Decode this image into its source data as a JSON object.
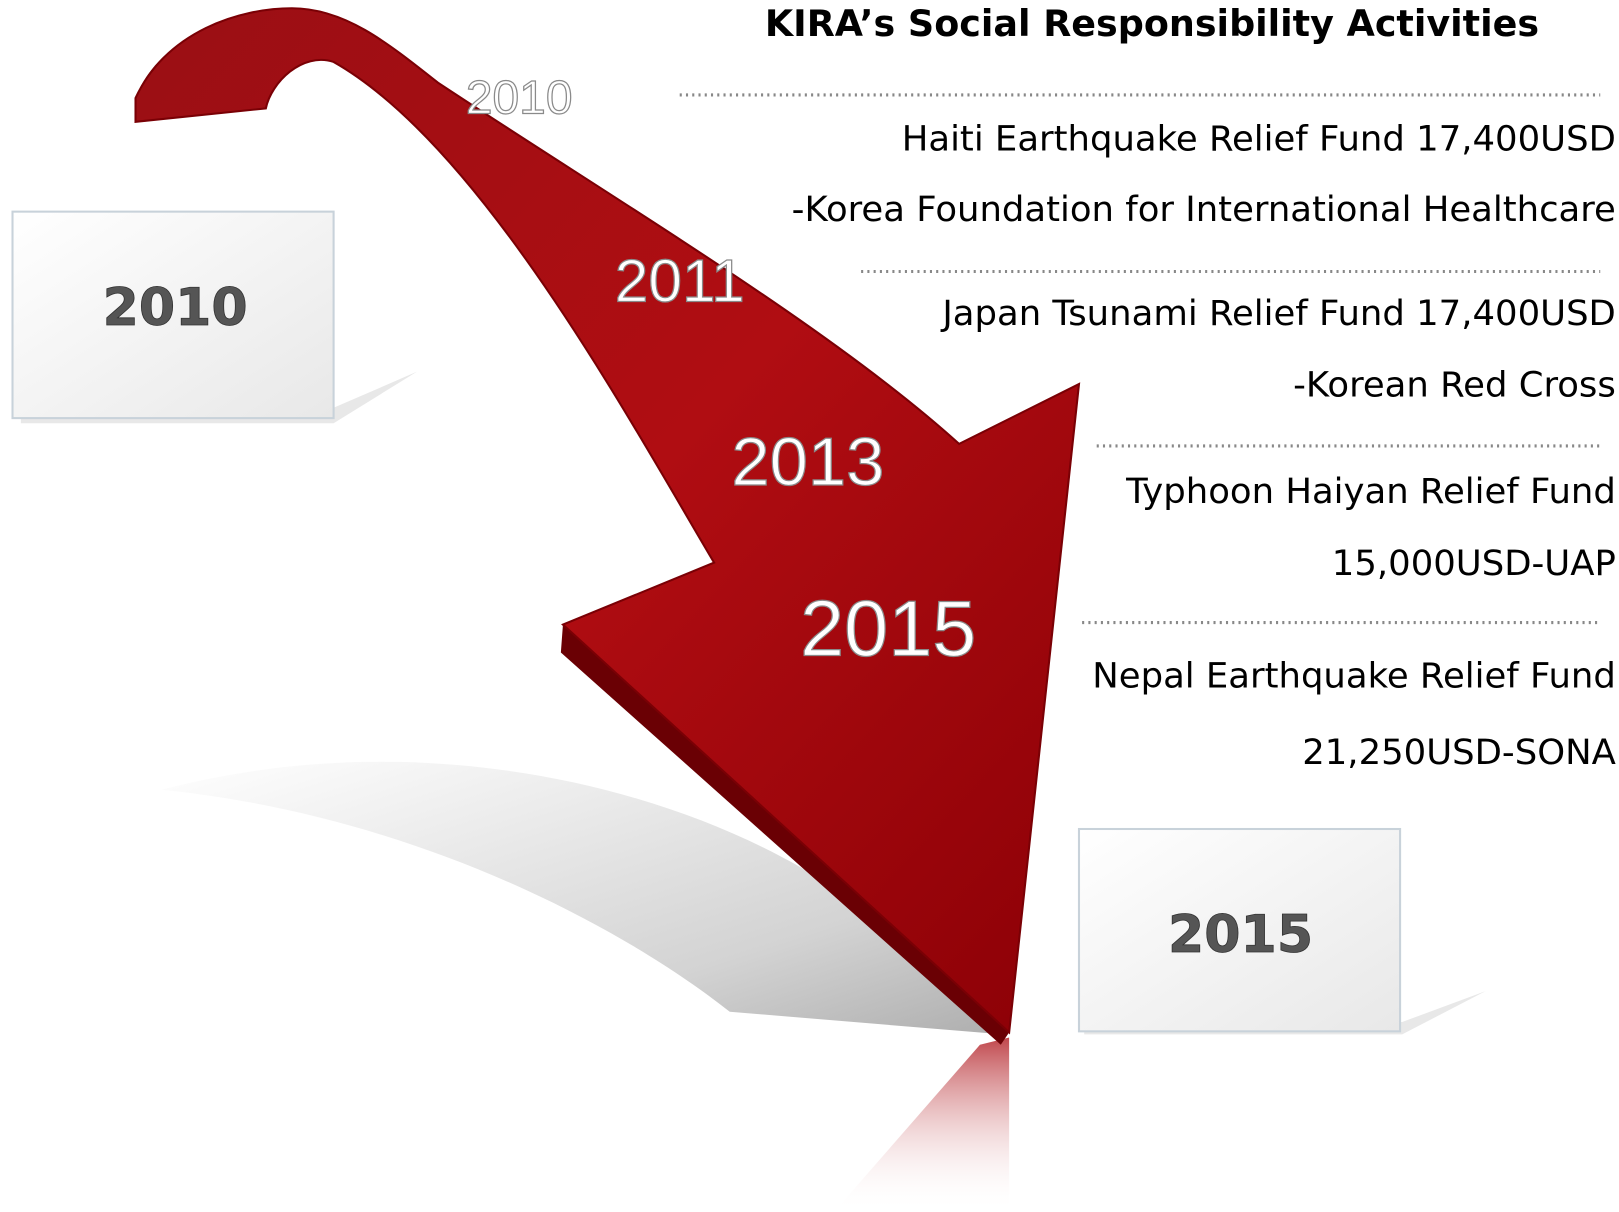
{
  "title": "KIRA’s Social Responsibility Activities",
  "start_box": "2010",
  "end_box": "2015",
  "arrow_labels": [
    "2010",
    "2011",
    "2013",
    "2015"
  ],
  "activities": [
    {
      "line1": "Haiti Earthquake Relief Fund 17,400USD",
      "line2": "-Korea Foundation for International Healthcare"
    },
    {
      "line1": "Japan Tsunami Relief Fund 17,400USD",
      "line2": "-Korean Red Cross"
    },
    {
      "line1": "Typhoon Haiyan Relief Fund",
      "line2": "15,000USD-UAP"
    },
    {
      "line1": "Nepal Earthquake Relief Fund",
      "line2": "21,250USD-SONA"
    }
  ]
}
